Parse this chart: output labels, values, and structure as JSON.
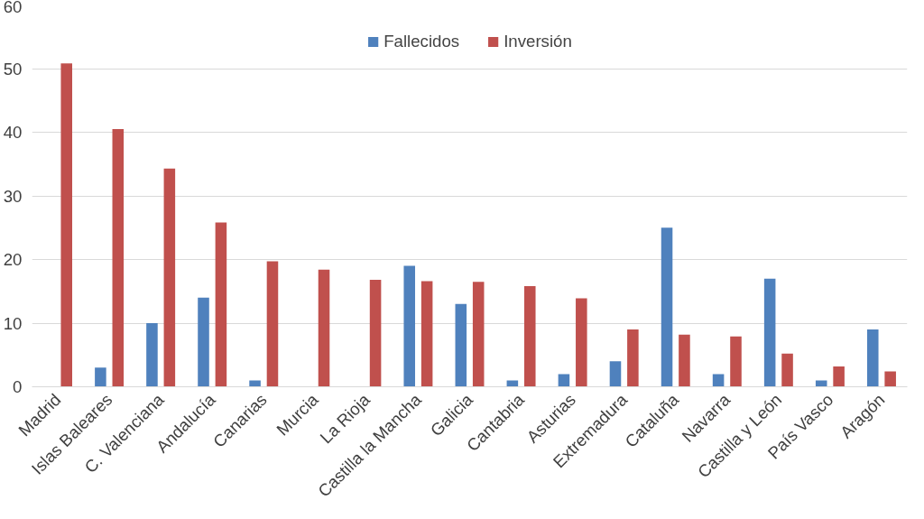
{
  "chart_data": {
    "type": "bar",
    "categories": [
      "Madrid",
      "Islas Baleares",
      "C. Valenciana",
      "Andalucía",
      "Canarias",
      "Murcia",
      "La Rioja",
      "Castilla la Mancha",
      "Galicia",
      "Cantabria",
      "Asturias",
      "Extremadura",
      "Cataluña",
      "Navarra",
      "Castilla y León",
      "País Vasco",
      "Aragón"
    ],
    "series": [
      {
        "name": "Fallecidos",
        "color": "#4f81bd",
        "values": [
          0,
          3,
          10,
          14,
          1,
          0,
          0,
          19,
          13,
          1,
          2,
          4,
          25,
          2,
          17,
          1,
          9
        ]
      },
      {
        "name": "Inversión",
        "color": "#c0504d",
        "values": [
          50.8,
          40.5,
          34.3,
          25.8,
          19.7,
          18.4,
          16.8,
          16.6,
          16.5,
          15.8,
          13.9,
          9.0,
          8.2,
          7.9,
          5.2,
          3.2,
          2.4
        ]
      }
    ],
    "ylim": [
      0,
      60
    ],
    "yticks": [
      0,
      10,
      20,
      30,
      40,
      50,
      60
    ],
    "grid": "y",
    "legend": "top"
  }
}
